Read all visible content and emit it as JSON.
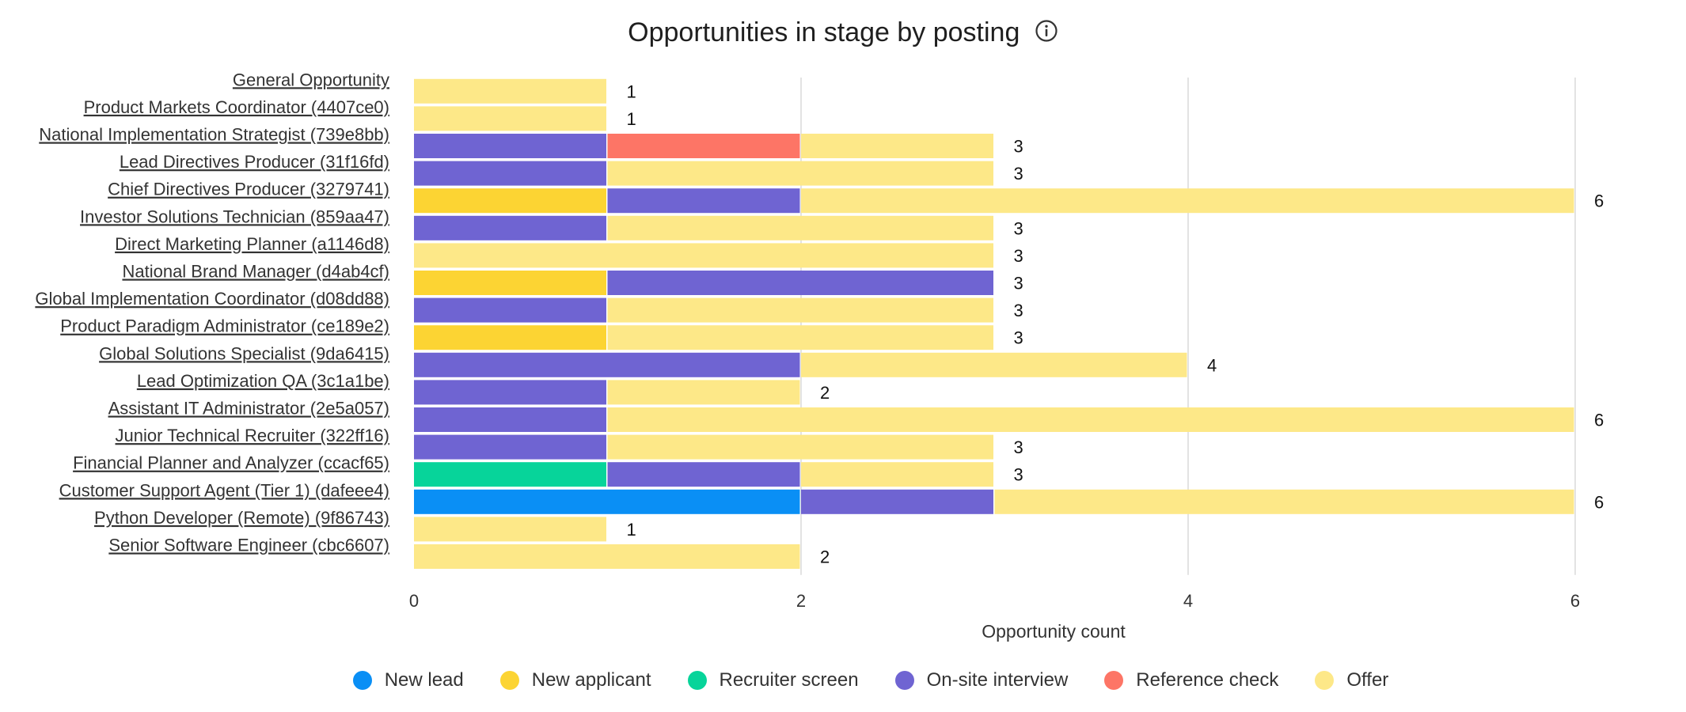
{
  "header": {
    "title": "Opportunities in stage by posting",
    "info_icon": "info-circle-icon"
  },
  "colors": {
    "New lead": "#0a8ff5",
    "New applicant": "#fcd433",
    "Recruiter screen": "#07d49a",
    "On-site interview": "#6f64d2",
    "Reference check": "#fd7566",
    "Offer": "#fde888"
  },
  "chart_data": {
    "type": "bar",
    "orientation": "horizontal",
    "stacked": true,
    "title": "Opportunities in stage by posting",
    "xlabel": "Opportunity count",
    "ylabel": "",
    "xlim": [
      0,
      6
    ],
    "x_ticks": [
      "0",
      "2",
      "4",
      "6"
    ],
    "grid": true,
    "legend_position": "bottom",
    "categories": [
      "General Opportunity",
      "Product Markets Coordinator (4407ce0)",
      "National Implementation Strategist (739e8bb)",
      "Lead Directives Producer (31f16fd)",
      "Chief Directives Producer (3279741)",
      "Investor Solutions Technician (859aa47)",
      "Direct Marketing Planner (a1146d8)",
      "National Brand Manager (d4ab4cf)",
      "Global Implementation Coordinator (d08dd88)",
      "Product Paradigm Administrator (ce189e2)",
      "Global Solutions Specialist (9da6415)",
      "Lead Optimization QA (3c1a1be)",
      "Assistant IT Administrator (2e5a057)",
      "Junior Technical Recruiter (322ff16)",
      "Financial Planner and Analyzer (ccacf65)",
      "Customer Support Agent (Tier 1) (dafeee4)",
      "Python Developer (Remote) (9f86743)",
      "Senior Software Engineer (cbc6607)"
    ],
    "series": [
      {
        "name": "New lead",
        "values": [
          0,
          0,
          0,
          0,
          0,
          0,
          0,
          0,
          0,
          0,
          0,
          0,
          0,
          0,
          0,
          2,
          0,
          0
        ]
      },
      {
        "name": "New applicant",
        "values": [
          0,
          0,
          0,
          0,
          1,
          0,
          0,
          1,
          0,
          1,
          0,
          0,
          0,
          0,
          0,
          0,
          0,
          0
        ]
      },
      {
        "name": "Recruiter screen",
        "values": [
          0,
          0,
          0,
          0,
          0,
          0,
          0,
          0,
          0,
          0,
          0,
          0,
          0,
          0,
          1,
          0,
          0,
          0
        ]
      },
      {
        "name": "On-site interview",
        "values": [
          0,
          0,
          1,
          1,
          1,
          1,
          0,
          2,
          1,
          0,
          2,
          1,
          1,
          1,
          1,
          1,
          0,
          0
        ]
      },
      {
        "name": "Reference check",
        "values": [
          0,
          0,
          1,
          0,
          0,
          0,
          0,
          0,
          0,
          0,
          0,
          0,
          0,
          0,
          0,
          0,
          0,
          0
        ]
      },
      {
        "name": "Offer",
        "values": [
          1,
          1,
          1,
          2,
          4,
          2,
          3,
          0,
          2,
          2,
          2,
          1,
          5,
          2,
          1,
          3,
          1,
          2
        ]
      }
    ],
    "totals": [
      1,
      1,
      3,
      3,
      6,
      3,
      3,
      3,
      3,
      3,
      4,
      2,
      6,
      3,
      3,
      6,
      1,
      2
    ]
  }
}
